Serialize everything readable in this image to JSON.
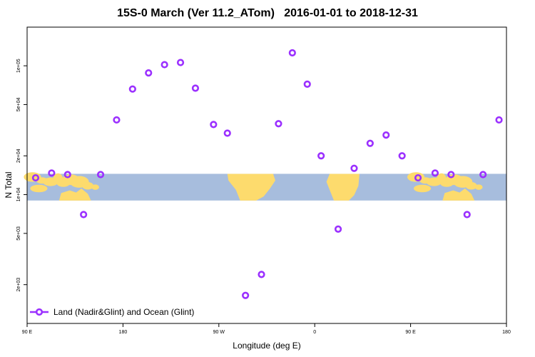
{
  "chart_data": {
    "type": "scatter",
    "title": "15S-0 March (Ver 11.2_ATom)   2016-01-01 to 2018-12-31",
    "xlabel": "Longitude (deg E)",
    "ylabel": "N Total",
    "xlim": [
      90,
      540
    ],
    "ylim_log10": [
      3.0,
      5.3
    ],
    "y_scale": "log",
    "x_ticks": [
      90,
      180,
      270,
      360,
      450,
      540
    ],
    "x_tick_labels": [
      "90 E",
      "180",
      "90 W",
      "0",
      "90 E",
      "180"
    ],
    "y_ticks": [
      2000,
      5000,
      10000,
      20000,
      50000,
      100000
    ],
    "y_tick_labels": [
      "2e+03",
      "5e+03",
      "1e+04",
      "2e+04",
      "5e+04",
      "1e+05"
    ],
    "legend": {
      "position": "bottom-left",
      "label": "Land (Nadir&Glint) and Ocean (Glint)"
    },
    "map_strip": {
      "y_range": [
        9000,
        14500
      ],
      "ocean_color": "#a7bddd",
      "land_color": "#fddb6d"
    },
    "series": [
      {
        "name": "Land (Nadir&Glint) and Ocean (Glint)",
        "color": "#9b30ff",
        "x": [
          98,
          113,
          128,
          143,
          159,
          174,
          189,
          204,
          219,
          234,
          248,
          265,
          278,
          295,
          310,
          326,
          339,
          353,
          366,
          382,
          397,
          412,
          427,
          442,
          457,
          473,
          488,
          503,
          518,
          533
        ],
        "y": [
          13500,
          14700,
          14300,
          7000,
          14300,
          38000,
          66000,
          88000,
          102000,
          106000,
          67000,
          35000,
          30000,
          1650,
          2400,
          35500,
          126000,
          72000,
          20000,
          5400,
          16000,
          25000,
          29000,
          20000,
          13500,
          14700,
          14300,
          7000,
          14300,
          38000
        ]
      }
    ]
  }
}
